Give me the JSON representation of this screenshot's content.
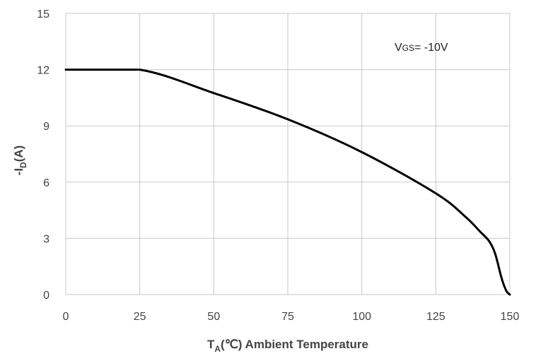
{
  "chart_data": {
    "type": "line",
    "xlabel": {
      "main": "T",
      "sub": "A",
      "rest": "(℃) Ambient Temperature"
    },
    "ylabel": {
      "pre": "-I",
      "sub": "D",
      "rest": "(A)"
    },
    "xlim": [
      0,
      150
    ],
    "ylim": [
      0,
      15
    ],
    "xticks": [
      0,
      25,
      50,
      75,
      100,
      125,
      150
    ],
    "yticks": [
      0,
      3,
      6,
      9,
      12,
      15
    ],
    "grid": true,
    "annotation": {
      "main": "V",
      "small": "GS",
      "rest": "= -10V"
    },
    "series": [
      {
        "x": [
          0,
          25,
          50,
          75,
          100,
          125,
          135,
          140,
          143,
          145,
          147,
          148,
          149,
          150
        ],
        "y": [
          12.0,
          12.0,
          10.75,
          9.35,
          7.6,
          5.4,
          4.15,
          3.35,
          2.85,
          2.2,
          1.0,
          0.5,
          0.15,
          0.0
        ]
      }
    ],
    "colors": {
      "line": "#000000",
      "grid": "#c8c8c8",
      "text": "#444444"
    }
  }
}
